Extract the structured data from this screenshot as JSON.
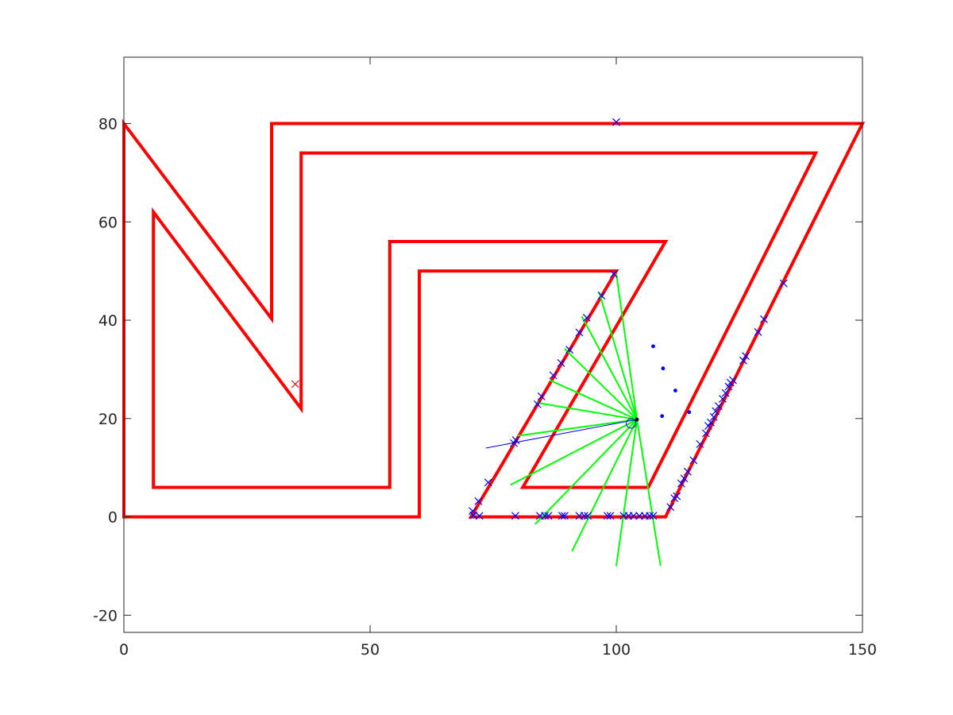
{
  "chart_data": {
    "type": "line",
    "title": "",
    "xlabel": "",
    "ylabel": "",
    "xlim": [
      0,
      150
    ],
    "ylim": [
      -23.5,
      93.5
    ],
    "x_ticks": [
      0,
      50,
      100,
      150
    ],
    "y_ticks": [
      -20,
      0,
      20,
      40,
      60,
      80
    ],
    "x_tick_labels": [
      "0",
      "50",
      "100",
      "150"
    ],
    "y_tick_labels": [
      "-20",
      "0",
      "20",
      "40",
      "60",
      "80"
    ],
    "grid": false,
    "legend": "none",
    "colors": {
      "walls": "#ff0000",
      "rays": "#00ff00",
      "scan_points": "#0000ff",
      "axes": "#262626"
    },
    "series": [
      {
        "style": "wall",
        "points": [
          [
            0,
            0
          ],
          [
            60,
            0
          ],
          [
            60,
            50
          ],
          [
            100,
            50
          ],
          [
            70.5,
            0
          ],
          [
            110,
            0
          ],
          [
            150,
            80
          ],
          [
            30,
            80
          ],
          [
            30,
            40.3
          ],
          [
            0,
            80
          ],
          [
            0,
            0
          ]
        ]
      },
      {
        "style": "wall",
        "points": [
          [
            6,
            6
          ],
          [
            54,
            6
          ],
          [
            54,
            56
          ],
          [
            110,
            56
          ],
          [
            81,
            6
          ],
          [
            106.5,
            6
          ],
          [
            140.5,
            74
          ],
          [
            36,
            74
          ],
          [
            36,
            22
          ],
          [
            6,
            62
          ],
          [
            6,
            6
          ]
        ]
      },
      {
        "style": "rays",
        "origin": [
          104.2,
          19.8
        ],
        "endpoints": [
          [
            100,
            49.5
          ],
          [
            96.5,
            45.8
          ],
          [
            93,
            40.8
          ],
          [
            89.5,
            34.2
          ],
          [
            86.5,
            27.8
          ],
          [
            84,
            23.2
          ],
          [
            80,
            16.5
          ],
          [
            78.5,
            6.5
          ],
          [
            83.5,
            -1.5
          ],
          [
            91,
            -7
          ],
          [
            100,
            -10
          ],
          [
            109,
            -10
          ]
        ]
      },
      {
        "style": "heading",
        "origin": [
          104.2,
          19.8
        ],
        "end": [
          73.5,
          14
        ]
      },
      {
        "style": "scan-x",
        "points": [
          [
            100,
            80.3
          ],
          [
            99.5,
            49.4
          ],
          [
            97,
            45
          ],
          [
            94,
            40.5
          ],
          [
            92.5,
            37.5
          ],
          [
            90.5,
            34
          ],
          [
            88.8,
            31.3
          ],
          [
            87.2,
            28.8
          ],
          [
            84.8,
            24.5
          ],
          [
            84,
            22.9
          ],
          [
            79.6,
            15.6
          ],
          [
            79.2,
            15
          ],
          [
            74,
            7
          ],
          [
            72,
            3.2
          ],
          [
            70.8,
            1.2
          ],
          [
            71,
            0.3
          ],
          [
            72.2,
            0.2
          ],
          [
            79.5,
            0.2
          ],
          [
            84.5,
            0.2
          ],
          [
            85.5,
            0.2
          ],
          [
            86.2,
            0.2
          ],
          [
            89,
            0.2
          ],
          [
            89.5,
            0.2
          ],
          [
            92.5,
            0.2
          ],
          [
            93.5,
            0.2
          ],
          [
            94.2,
            0.2
          ],
          [
            98.2,
            0.2
          ],
          [
            98.8,
            0.2
          ],
          [
            101.5,
            0.2
          ],
          [
            102.5,
            0.2
          ],
          [
            103.5,
            0.2
          ],
          [
            104.7,
            0.2
          ],
          [
            105.8,
            0.2
          ],
          [
            106.8,
            0.2
          ],
          [
            107.5,
            0.2
          ],
          [
            111,
            2
          ],
          [
            111.8,
            3.8
          ],
          [
            112.3,
            4.2
          ],
          [
            113.2,
            6.8
          ],
          [
            113.8,
            7.8
          ],
          [
            114.5,
            9.2
          ],
          [
            115.7,
            11.5
          ],
          [
            117,
            14.8
          ],
          [
            118.2,
            17
          ],
          [
            118.7,
            18.5
          ],
          [
            119.2,
            19.2
          ],
          [
            119.8,
            20.3
          ],
          [
            120.2,
            21.5
          ],
          [
            120.8,
            22.5
          ],
          [
            121.6,
            24
          ],
          [
            122.2,
            25.2
          ],
          [
            122.8,
            26.5
          ],
          [
            123.2,
            27.3
          ],
          [
            123.7,
            27.8
          ],
          [
            125.8,
            31.8
          ],
          [
            126.3,
            32.7
          ],
          [
            128.8,
            37.6
          ],
          [
            130,
            40.2
          ],
          [
            134,
            47.5
          ]
        ]
      },
      {
        "style": "dots",
        "points": [
          [
            107.5,
            34.7
          ],
          [
            109.5,
            30.2
          ],
          [
            112,
            25.7
          ],
          [
            109.3,
            20.5
          ],
          [
            114.8,
            21.3
          ]
        ]
      },
      {
        "style": "target-x",
        "points": [
          [
            34.8,
            27
          ]
        ]
      },
      {
        "style": "robot",
        "points": [
          [
            103,
            19
          ]
        ]
      },
      {
        "style": "robot-center",
        "points": [
          [
            104.2,
            19.8
          ]
        ]
      }
    ]
  }
}
